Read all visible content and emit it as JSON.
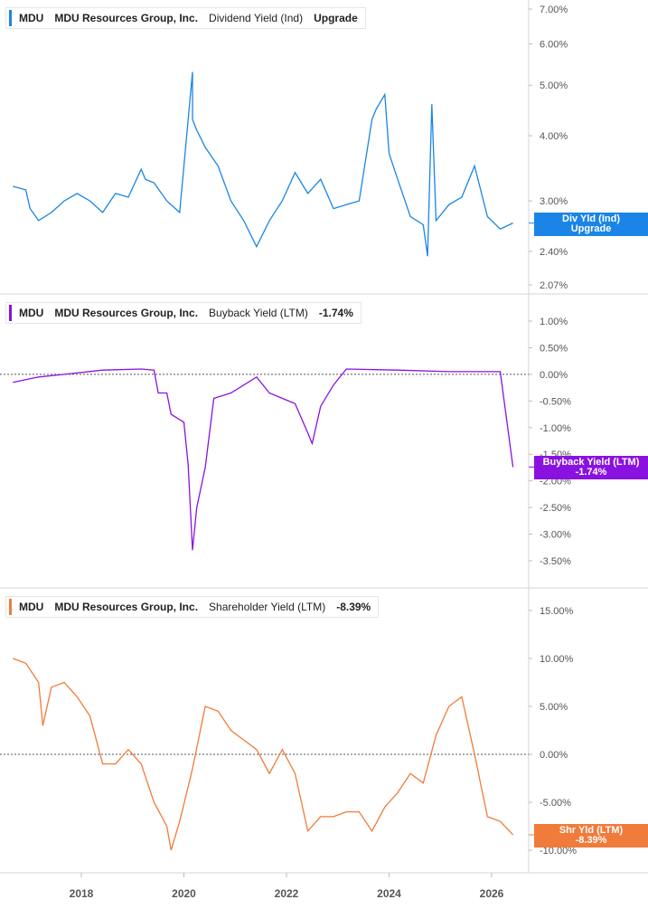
{
  "chart_data": [
    {
      "type": "line",
      "ticker": "MDU",
      "company": "MDU Resources Group, Inc.",
      "metric": "Dividend Yield (Ind)",
      "status": "Upgrade",
      "color": "#1a85e6",
      "scale": "log",
      "ylim": [
        2.07,
        7.0
      ],
      "yticks": [
        "7.00%",
        "6.00%",
        "5.00%",
        "4.00%",
        "3.00%",
        "2.40%",
        "2.07%"
      ],
      "ytick_values": [
        7.0,
        6.0,
        5.0,
        4.0,
        3.0,
        2.4,
        2.07
      ],
      "flag_line1": "Div Yld (Ind)",
      "flag_line2": "Upgrade",
      "flag_value": 2.72,
      "series": [
        {
          "x": [
            "2016-09",
            "2016-12",
            "2017-01",
            "2017-03",
            "2017-06",
            "2017-09",
            "2017-12",
            "2018-03",
            "2018-06",
            "2018-09",
            "2018-12",
            "2019-03",
            "2019-04",
            "2019-06",
            "2019-09",
            "2019-12",
            "2020-03",
            "2020-03",
            "2020-04",
            "2020-06",
            "2020-09",
            "2020-12",
            "2021-03",
            "2021-06",
            "2021-09",
            "2021-12",
            "2022-03",
            "2022-06",
            "2022-09",
            "2022-12",
            "2023-03",
            "2023-06",
            "2023-09",
            "2023-10",
            "2023-12",
            "2024-01",
            "2024-03",
            "2024-06",
            "2024-09",
            "2024-10",
            "2024-11",
            "2024-12",
            "2025-03",
            "2025-06",
            "2025-09",
            "2025-12",
            "2026-03",
            "2026-06"
          ],
          "y": [
            3.2,
            3.15,
            2.9,
            2.75,
            2.85,
            3.0,
            3.1,
            3.0,
            2.85,
            3.1,
            3.05,
            3.45,
            3.3,
            3.25,
            3.0,
            2.85,
            5.3,
            4.3,
            4.1,
            3.8,
            3.5,
            3.0,
            2.75,
            2.45,
            2.75,
            3.0,
            3.4,
            3.1,
            3.3,
            2.9,
            2.95,
            3.0,
            4.3,
            4.5,
            4.8,
            3.7,
            3.3,
            2.8,
            2.7,
            2.35,
            4.6,
            2.75,
            2.95,
            3.05,
            3.5,
            2.8,
            2.65,
            2.72
          ]
        }
      ]
    },
    {
      "type": "line",
      "ticker": "MDU",
      "company": "MDU Resources Group, Inc.",
      "metric": "Buyback Yield (LTM)",
      "value_label": "-1.74%",
      "color": "#8a12e0",
      "ylim": [
        -3.5,
        1.0
      ],
      "yticks": [
        "1.00%",
        "0.50%",
        "0.00%",
        "-0.50%",
        "-1.00%",
        "-1.50%",
        "-2.00%",
        "-2.50%",
        "-3.00%",
        "-3.50%"
      ],
      "ytick_values": [
        1.0,
        0.5,
        0.0,
        -0.5,
        -1.0,
        -1.5,
        -2.0,
        -2.5,
        -3.0,
        -3.5
      ],
      "flag_line1": "Buyback Yield (LTM)",
      "flag_line2": "-1.74%",
      "flag_value": -1.74,
      "series": [
        {
          "x": [
            "2016-09",
            "2017-03",
            "2017-09",
            "2018-06",
            "2019-03",
            "2019-06",
            "2019-07",
            "2019-09",
            "2019-10",
            "2019-12",
            "2020-01",
            "2020-02",
            "2020-03",
            "2020-04",
            "2020-06",
            "2020-08",
            "2020-12",
            "2021-06",
            "2021-09",
            "2021-12",
            "2022-03",
            "2022-06",
            "2022-07",
            "2022-09",
            "2022-12",
            "2023-03",
            "2024-03",
            "2025-03",
            "2025-09",
            "2026-03",
            "2026-06"
          ],
          "y": [
            -0.15,
            -0.05,
            0.0,
            0.08,
            0.1,
            0.08,
            -0.35,
            -0.35,
            -0.75,
            -0.85,
            -0.9,
            -1.7,
            -3.3,
            -2.5,
            -1.75,
            -0.45,
            -0.35,
            -0.05,
            -0.35,
            -0.45,
            -0.55,
            -1.1,
            -1.3,
            -0.6,
            -0.2,
            0.1,
            0.08,
            0.05,
            0.05,
            0.05,
            -1.74
          ]
        }
      ]
    },
    {
      "type": "line",
      "ticker": "MDU",
      "company": "MDU Resources Group, Inc.",
      "metric": "Shareholder Yield (LTM)",
      "value_label": "-8.39%",
      "color": "#f07b3a",
      "ylim": [
        -10.0,
        15.0
      ],
      "yticks": [
        "15.00%",
        "10.00%",
        "5.00%",
        "0.00%",
        "-5.00%",
        "-10.00%"
      ],
      "ytick_values": [
        15.0,
        10.0,
        5.0,
        0.0,
        -5.0,
        -10.0
      ],
      "flag_line1": "Shr Yld (LTM)",
      "flag_line2": "-8.39%",
      "flag_value": -8.39,
      "series": [
        {
          "x": [
            "2016-09",
            "2016-12",
            "2017-03",
            "2017-04",
            "2017-06",
            "2017-09",
            "2017-12",
            "2018-03",
            "2018-06",
            "2018-09",
            "2018-12",
            "2019-03",
            "2019-06",
            "2019-09",
            "2019-10",
            "2019-12",
            "2020-03",
            "2020-06",
            "2020-09",
            "2020-12",
            "2021-03",
            "2021-06",
            "2021-09",
            "2021-12",
            "2022-03",
            "2022-06",
            "2022-09",
            "2022-12",
            "2023-03",
            "2023-06",
            "2023-09",
            "2023-12",
            "2024-03",
            "2024-06",
            "2024-09",
            "2024-12",
            "2025-03",
            "2025-06",
            "2025-09",
            "2025-12",
            "2026-03",
            "2026-06"
          ],
          "y": [
            10.0,
            9.5,
            7.5,
            3.0,
            7.0,
            7.5,
            6.0,
            4.0,
            -1.0,
            -1.0,
            0.5,
            -1.0,
            -5.0,
            -7.5,
            -10.0,
            -7.0,
            -1.5,
            5.0,
            4.5,
            2.5,
            1.5,
            0.5,
            -2.0,
            0.5,
            -2.0,
            -8.0,
            -6.5,
            -6.5,
            -6.0,
            -6.0,
            -8.0,
            -5.5,
            -4.0,
            -2.0,
            -3.0,
            2.0,
            5.0,
            6.0,
            0.0,
            -6.5,
            -7.0,
            -8.39
          ]
        }
      ]
    }
  ],
  "x_axis": {
    "ticks": [
      "2018",
      "2020",
      "2022",
      "2024",
      "2026"
    ]
  }
}
